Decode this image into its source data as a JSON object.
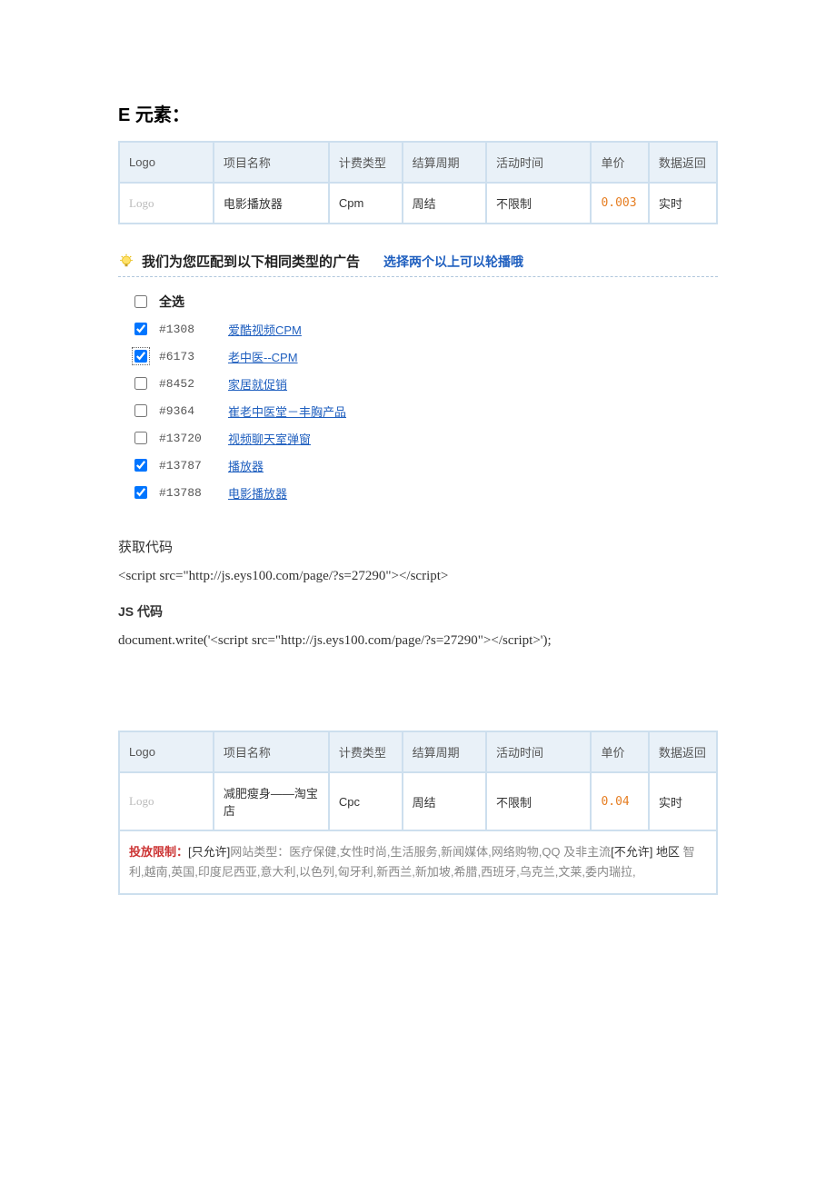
{
  "section_title": "E 元素：",
  "table_headers": [
    "Logo",
    "项目名称",
    "计费类型",
    "结算周期",
    "活动时间",
    "单价",
    "数据返回"
  ],
  "col_widths": [
    "90px",
    "110px",
    "70px",
    "80px",
    "100px",
    "55px",
    "65px"
  ],
  "colors": {
    "border": "#cddfee",
    "header_bg": "#e9f1f8",
    "link": "#1f5fbf",
    "price": "#e67e22",
    "restrict_red": "#cc3333",
    "muted": "#888888",
    "logo_placeholder": "#bbbbbb"
  },
  "table1_row": {
    "logo": "Logo",
    "name": "电影播放器",
    "billing": "Cpm",
    "cycle": "周结",
    "period": "不限制",
    "price": "0.003",
    "return": "实时"
  },
  "match": {
    "title": "我们为您匹配到以下相同类型的广告",
    "tip": "选择两个以上可以轮播哦",
    "select_all": "全选"
  },
  "ads": [
    {
      "checked": true,
      "focus": false,
      "id": "#1308",
      "name": "爱酷视频CPM"
    },
    {
      "checked": true,
      "focus": true,
      "id": "#6173",
      "name": "老中医--CPM"
    },
    {
      "checked": false,
      "focus": false,
      "id": "#8452",
      "name": "家居就促销"
    },
    {
      "checked": false,
      "focus": false,
      "id": "#9364",
      "name": "崔老中医堂－丰胸产品"
    },
    {
      "checked": false,
      "focus": false,
      "id": "#13720",
      "name": "视频聊天室弹窗"
    },
    {
      "checked": true,
      "focus": false,
      "id": "#13787",
      "name": "播放器"
    },
    {
      "checked": true,
      "focus": false,
      "id": "#13788",
      "name": "电影播放器"
    }
  ],
  "code_section": {
    "get_code_label": "获取代码",
    "script_tag": "<script src=\"http://js.eys100.com/page/?s=27290\"></script>",
    "js_label": "JS 代码",
    "js_code": "document.write('<script src=\"http://js.eys100.com/page/?s=27290\"></script>');"
  },
  "table2_row": {
    "logo": "Logo",
    "name": "减肥瘦身——淘宝店",
    "billing": "Cpc",
    "cycle": "周结",
    "period": "不限制",
    "price": "0.04",
    "return": "实时"
  },
  "restriction": {
    "label": "投放限制：",
    "allow_bracket": "[只允许]",
    "allow_prefix": "网站类型：",
    "allow_list": "医疗保健,女性时尚,生活服务,新闻媒体,网络购物,QQ 及非主流",
    "deny_bracket": "[不允许]",
    "deny_prefix": " 地区 ",
    "deny_list": "智利,越南,英国,印度尼西亚,意大利,以色列,匈牙利,新西兰,新加坡,希腊,西班牙,乌克兰,文莱,委内瑞拉,"
  }
}
